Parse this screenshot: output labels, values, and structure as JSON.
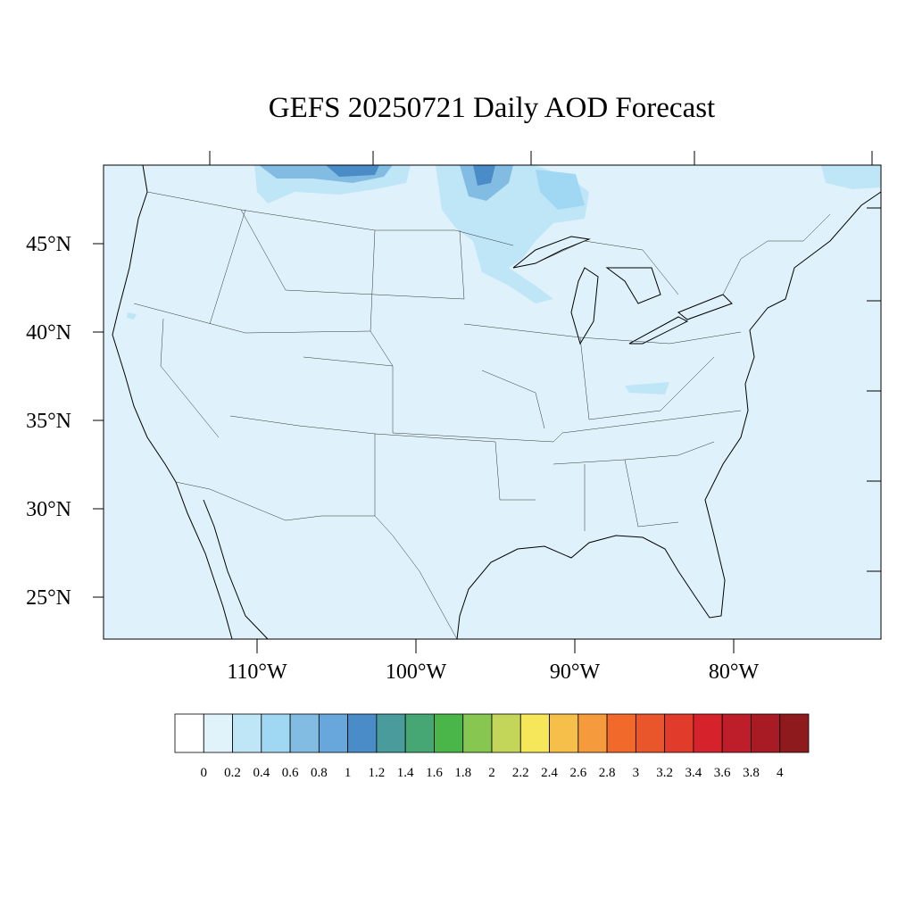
{
  "title": "GEFS 20250721 Daily AOD Forecast",
  "lat_labels": [
    "45°N",
    "40°N",
    "35°N",
    "30°N",
    "25°N"
  ],
  "lon_labels": [
    "110°W",
    "100°W",
    "90°W",
    "80°W"
  ],
  "colorbar": {
    "colors": [
      "#ffffff",
      "#e0f3fb",
      "#bfe6f7",
      "#a0d8f3",
      "#82bce2",
      "#67a7db",
      "#4a8cc8",
      "#4a9b9b",
      "#46a774",
      "#4ab64a",
      "#86c651",
      "#c3d659",
      "#f5e65a",
      "#f6bf4a",
      "#f59a3d",
      "#f26a2b",
      "#e9562c",
      "#e03b2b",
      "#d6232b",
      "#bd1e2a",
      "#a81b24",
      "#8f1a1e"
    ],
    "labels": [
      0,
      0.2,
      0.4,
      0.6,
      0.8,
      1,
      1.2,
      1.4,
      1.6,
      1.8,
      2,
      2.2,
      2.4,
      2.6,
      2.8,
      3,
      3.2,
      3.4,
      3.6,
      3.8,
      4
    ]
  }
}
